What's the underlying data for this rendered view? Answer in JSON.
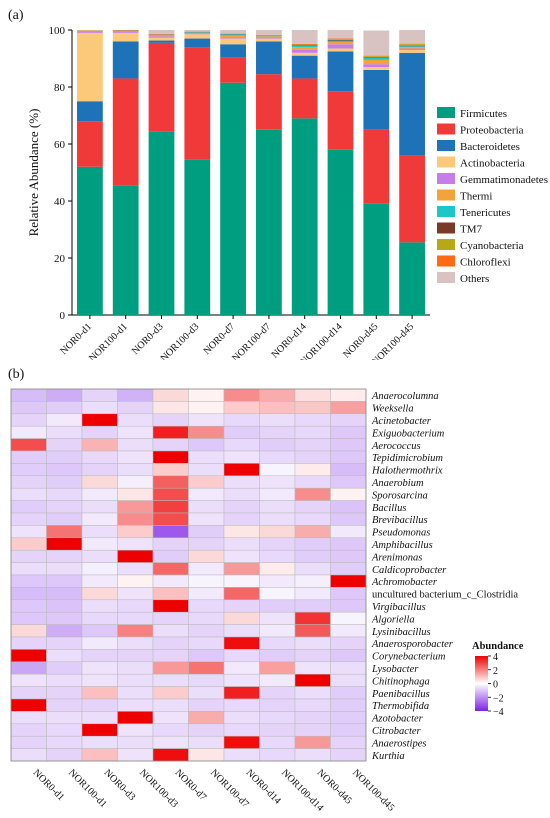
{
  "panels": {
    "a_label": "(a)",
    "b_label": "(b)"
  },
  "chart_data": [
    {
      "type": "bar",
      "stacked": true,
      "title": "",
      "xlabel": "",
      "ylabel": "Relative Abundance (%)",
      "ylim": [
        0,
        100
      ],
      "yticks": [
        0,
        20,
        40,
        60,
        80,
        100
      ],
      "grid": false,
      "legend_placement": "right",
      "categories": [
        "NOR0-d1",
        "NOR100-d1",
        "NOR0-d3",
        "NOR100-d3",
        "NOR0-d7",
        "NOR100-d7",
        "NOR0-d14",
        "NOR100-d14",
        "NOR0-d45",
        "NOR100-d45"
      ],
      "series": [
        {
          "name": "Firmicutes",
          "color": "#009E80",
          "values": [
            52,
            45.5,
            64.5,
            54.5,
            81.5,
            65,
            69,
            58,
            39,
            25.5
          ]
        },
        {
          "name": "Proteobacteria",
          "color": "#F03A3A",
          "values": [
            16,
            37.5,
            31,
            39.5,
            9,
            19.5,
            14,
            20.5,
            26,
            30.5
          ]
        },
        {
          "name": "Bacteroidetes",
          "color": "#1E72B8",
          "values": [
            7,
            13,
            0.8,
            3,
            4.5,
            11.5,
            8,
            14,
            21,
            36
          ]
        },
        {
          "name": "Actinobacteria",
          "color": "#FBC97A",
          "values": [
            24,
            3,
            1,
            1.5,
            2,
            1,
            1,
            1,
            1,
            1
          ]
        },
        {
          "name": "Gemmatimonadetes",
          "color": "#C77DE8",
          "values": [
            0.3,
            0.3,
            0.5,
            0.3,
            0.5,
            0.5,
            1,
            1.5,
            1,
            0.5
          ]
        },
        {
          "name": "Thermi",
          "color": "#F2A33A",
          "values": [
            0.2,
            0.2,
            0.3,
            0.2,
            0.5,
            0.3,
            1,
            0.8,
            1.5,
            0.5
          ]
        },
        {
          "name": "Tenericutes",
          "color": "#1CC7C7",
          "values": [
            0.1,
            0.2,
            0.2,
            0.2,
            0.5,
            0.2,
            0.5,
            0.5,
            0.8,
            0.3
          ]
        },
        {
          "name": "TM7",
          "color": "#7A3A2A",
          "values": [
            0.1,
            0.1,
            0.1,
            0.1,
            0.1,
            0.1,
            0.2,
            0.2,
            0.2,
            0.2
          ]
        },
        {
          "name": "Cyanobacteria",
          "color": "#B7A816",
          "values": [
            0.1,
            0.1,
            0.1,
            0.1,
            0.1,
            0.1,
            0.2,
            0.3,
            0.3,
            0.5
          ]
        },
        {
          "name": "Chloroflexi",
          "color": "#FF6A12",
          "values": [
            0.1,
            0.1,
            0.1,
            0.1,
            0.1,
            0.1,
            0.2,
            0.2,
            0.2,
            0.2
          ]
        },
        {
          "name": "Others",
          "color": "#D9C2C2",
          "values": [
            0.1,
            0.0,
            1.4,
            0.5,
            1.2,
            1.7,
            4.9,
            3.0,
            8.8,
            4.8
          ]
        }
      ]
    },
    {
      "type": "heatmap",
      "title": "",
      "colorbar_title": "Abundance",
      "colorbar_ticks": [
        4,
        2,
        0,
        -2,
        -4
      ],
      "colorbar_tick_labels": [
        "4",
        "2",
        "0",
        "−2",
        "−4"
      ],
      "color_min": "#7B22E6",
      "color_mid": "#FFFFFF",
      "color_max": "#EE0000",
      "zlim": [
        -4,
        4
      ],
      "columns": [
        "NOR0-d1",
        "NOR100-d1",
        "NOR0-d3",
        "NOR100-d3",
        "NOR0-d7",
        "NOR100-d7",
        "NOR0-d14",
        "NOR100-d14",
        "NOR0-d45",
        "NOR100-d45"
      ],
      "rows": [
        "Anaerocolumna",
        "Weeksella",
        "Acinetobacter",
        "Exiguobacterium",
        "Aerococcus",
        "Tepidimicrobium",
        "Halothermothrix",
        "Anaerobium",
        "Sporosarcina",
        "Bacillus",
        "Brevibacillus",
        "Pseudomonas",
        "Amphibacillus",
        "Arenimonas",
        "Caldicoprobacter",
        "Achromobacter",
        "uncultured bacterium_c_Clostridia",
        "Virgibacillus",
        "Algoriella",
        "Lysinibacillus",
        "Anaerosporobacter",
        "Corynebacterium",
        "Lysobacter",
        "Chitinophaga",
        "Paenibacillus",
        "Thermobifida",
        "Azotobacter",
        "Citrobacter",
        "Anaerostipes",
        "Kurthia"
      ],
      "row_italic": [
        true,
        true,
        true,
        true,
        true,
        true,
        true,
        true,
        true,
        true,
        true,
        true,
        true,
        true,
        true,
        true,
        false,
        true,
        true,
        true,
        true,
        true,
        true,
        true,
        true,
        true,
        true,
        true,
        true,
        true
      ],
      "values": [
        [
          -1.2,
          -1.5,
          -0.8,
          -1.4,
          0.6,
          0.2,
          1.8,
          1.3,
          0.5,
          0.3
        ],
        [
          -1.0,
          -0.9,
          -0.6,
          -0.8,
          0.4,
          0.2,
          0.8,
          1.0,
          0.9,
          1.5
        ],
        [
          -0.8,
          -0.4,
          4.0,
          -0.6,
          -0.8,
          -0.5,
          -0.7,
          -0.6,
          -0.7,
          -0.8
        ],
        [
          -0.4,
          -0.6,
          -0.8,
          -0.5,
          3.5,
          1.8,
          -0.9,
          -0.8,
          -0.7,
          -1.0
        ],
        [
          2.8,
          -0.8,
          1.2,
          -0.6,
          -0.8,
          -1.0,
          -0.7,
          -0.9,
          -0.8,
          -1.0
        ],
        [
          -0.9,
          -0.9,
          -0.7,
          -0.5,
          4.0,
          -0.6,
          -0.5,
          -0.7,
          -0.8,
          -1.0
        ],
        [
          -0.9,
          -1.0,
          -0.8,
          -0.6,
          0.8,
          -0.6,
          4.0,
          -0.2,
          0.3,
          -1.2
        ],
        [
          -0.8,
          -0.9,
          0.6,
          -0.3,
          2.5,
          0.8,
          -0.6,
          -0.5,
          -0.7,
          -1.0
        ],
        [
          -0.6,
          -0.7,
          -0.4,
          0.4,
          2.8,
          -0.4,
          -0.6,
          -0.4,
          1.8,
          0.2
        ],
        [
          -0.9,
          -0.8,
          -0.6,
          1.6,
          3.0,
          -0.6,
          -0.8,
          -0.6,
          -0.8,
          -1.1
        ],
        [
          -0.8,
          -0.9,
          -0.4,
          1.8,
          2.8,
          -0.5,
          -0.8,
          -0.6,
          -0.7,
          -1.0
        ],
        [
          -0.5,
          2.2,
          -0.6,
          0.8,
          -3.0,
          -0.9,
          0.4,
          0.6,
          1.3,
          -0.4
        ],
        [
          0.8,
          4.2,
          -0.4,
          -0.5,
          -0.8,
          -0.8,
          -0.6,
          -0.8,
          -0.9,
          -1.0
        ],
        [
          -0.8,
          -0.8,
          -0.6,
          4.0,
          -0.9,
          0.6,
          -0.5,
          -0.7,
          -0.9,
          -1.0
        ],
        [
          -0.6,
          -0.6,
          -0.3,
          -0.6,
          2.4,
          -0.4,
          1.6,
          0.3,
          -0.6,
          -0.9
        ],
        [
          -1.0,
          -1.0,
          -0.4,
          0.2,
          -0.4,
          -0.2,
          -0.2,
          -0.4,
          -0.3,
          4.0
        ],
        [
          -1.2,
          -1.2,
          0.6,
          -0.5,
          1.0,
          -0.4,
          2.4,
          -0.2,
          -0.4,
          -1.0
        ],
        [
          -1.0,
          -1.1,
          -0.6,
          -0.7,
          4.0,
          -0.7,
          -0.8,
          -0.9,
          -0.9,
          -1.0
        ],
        [
          -1.0,
          -1.0,
          -0.7,
          -0.7,
          -0.8,
          -0.7,
          0.6,
          -0.5,
          3.2,
          -0.2
        ],
        [
          0.6,
          -1.5,
          -1.0,
          2.0,
          -0.6,
          -0.8,
          -0.6,
          -0.4,
          2.6,
          -0.4
        ],
        [
          -0.8,
          -0.8,
          -0.4,
          -0.6,
          -0.8,
          -0.7,
          3.8,
          -0.7,
          -0.6,
          -0.8
        ],
        [
          4.2,
          -0.6,
          -0.8,
          -0.8,
          -0.8,
          -1.0,
          -0.7,
          -0.9,
          -0.8,
          -1.0
        ],
        [
          -1.6,
          -0.9,
          -0.5,
          -0.6,
          1.6,
          2.2,
          -0.4,
          1.5,
          -0.5,
          -0.6
        ],
        [
          -0.5,
          -0.6,
          -0.5,
          -0.6,
          -0.6,
          -0.7,
          -0.5,
          -0.4,
          4.2,
          -0.6
        ],
        [
          -0.8,
          -0.8,
          1.0,
          -0.6,
          0.8,
          -0.6,
          3.5,
          -0.8,
          -0.6,
          -0.9
        ],
        [
          4.2,
          -0.8,
          -0.8,
          -0.6,
          -0.6,
          -0.8,
          -0.7,
          -0.8,
          -0.7,
          -0.9
        ],
        [
          -0.6,
          -0.6,
          -0.6,
          4.0,
          -0.5,
          1.3,
          -0.6,
          -0.7,
          -0.8,
          -0.9
        ],
        [
          -0.8,
          -0.7,
          4.0,
          -0.5,
          -0.7,
          -0.8,
          -0.7,
          -0.8,
          -0.8,
          -0.9
        ],
        [
          -0.8,
          -0.7,
          -0.6,
          -0.6,
          -0.5,
          -0.6,
          3.8,
          -0.7,
          1.6,
          -0.8
        ],
        [
          -0.6,
          -0.8,
          1.0,
          -0.5,
          3.8,
          0.4,
          -0.6,
          -0.7,
          -0.6,
          -0.8
        ]
      ]
    }
  ]
}
